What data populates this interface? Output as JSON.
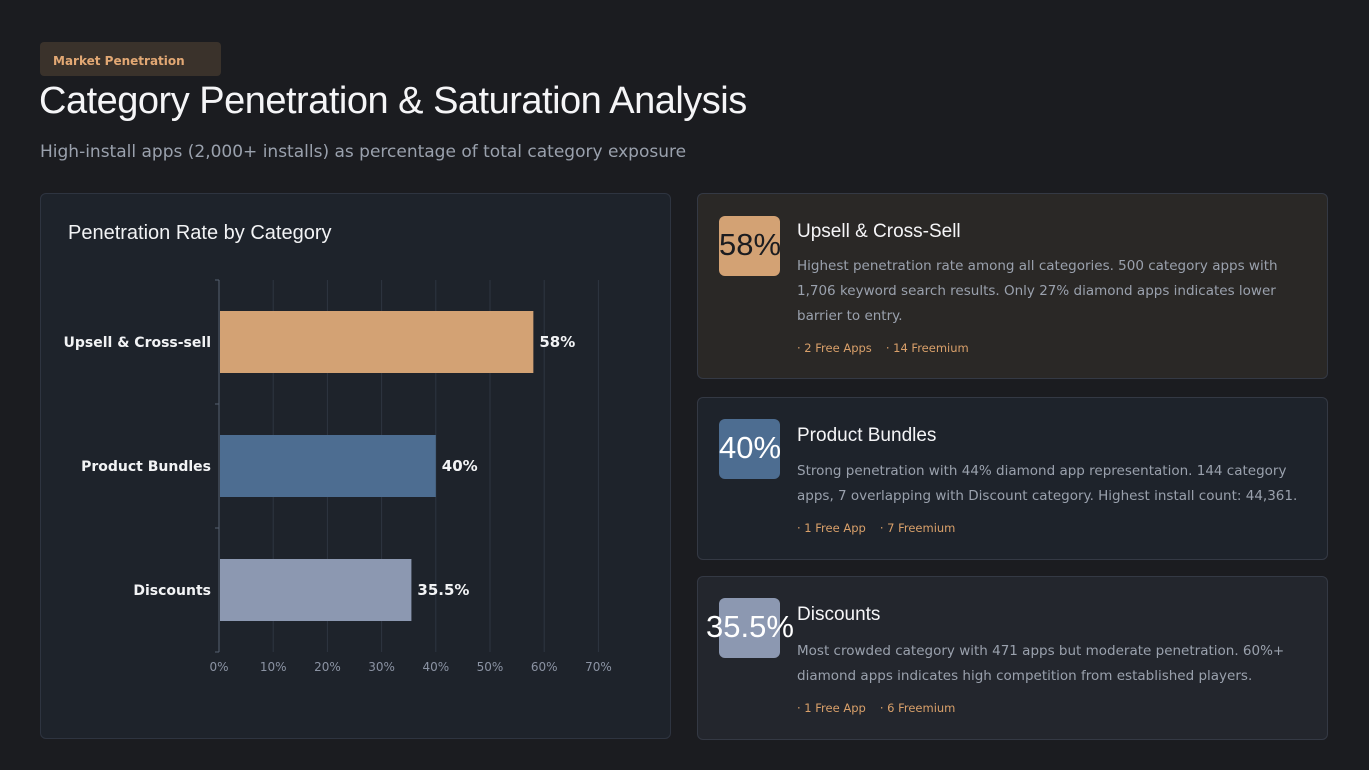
{
  "header": {
    "badge": "Market Penetration",
    "title": "Category Penetration & Saturation Analysis",
    "subtitle": "High-install apps (2,000+ installs) as percentage of total category exposure"
  },
  "chart_panel": {
    "title": "Penetration Rate by Category"
  },
  "chart_data": {
    "type": "bar",
    "orientation": "horizontal",
    "title": "Penetration Rate by Category",
    "categories": [
      "Upsell & Cross-sell",
      "Product Bundles",
      "Discounts"
    ],
    "values": [
      58,
      40,
      35.5
    ],
    "value_labels": [
      "58%",
      "40%",
      "35.5%"
    ],
    "colors": [
      "#d3a274",
      "#4d6d91",
      "#8c98b1"
    ],
    "xlim": [
      0,
      70
    ],
    "xticks": [
      0,
      10,
      20,
      30,
      40,
      50,
      60,
      70
    ],
    "xtick_labels": [
      "0%",
      "10%",
      "20%",
      "30%",
      "40%",
      "50%",
      "60%",
      "70%"
    ],
    "grid": true,
    "xlabel": "",
    "ylabel": ""
  },
  "cards": [
    {
      "value": "58%",
      "title": "Upsell & Cross-Sell",
      "description": "Highest penetration rate among all categories. 500 category apps with 1,706 keyword search results. Only 27% diamond apps indicates lower barrier to entry.",
      "tags": [
        "· 2 Free Apps",
        "· 14 Freemium"
      ],
      "color": "#d3a274",
      "value_color": "#1b1c20"
    },
    {
      "value": "40%",
      "title": "Product Bundles",
      "description": "Strong penetration with 44% diamond app representation. 144 category apps, 7 overlapping with Discount category. Highest install count: 44,361.",
      "tags": [
        "· 1 Free App",
        "· 7 Freemium"
      ],
      "color": "#4d6d91",
      "value_color": "#ffffff"
    },
    {
      "value": "35.5%",
      "title": "Discounts",
      "description": "Most crowded category with 471 apps but moderate penetration. 60%+ diamond apps indicates high competition from established players.",
      "tags": [
        "· 1 Free App",
        "· 6 Freemium"
      ],
      "color": "#8c98b1",
      "value_color": "#ffffff"
    }
  ]
}
